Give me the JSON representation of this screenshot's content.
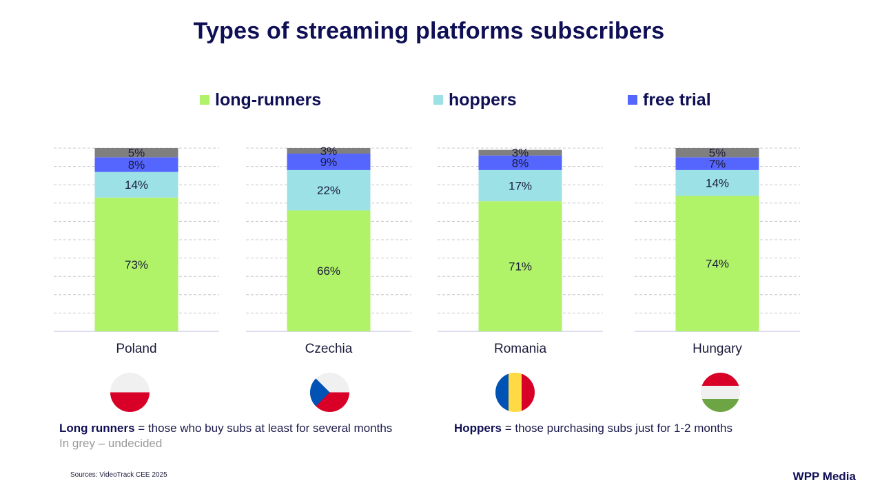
{
  "title": "Types of streaming platforms subscribers",
  "legend": [
    {
      "label": "long-runners",
      "color": "#b0f268"
    },
    {
      "label": "hoppers",
      "color": "#9be1e6"
    },
    {
      "label": "free trial",
      "color": "#5566ff"
    }
  ],
  "chart_data": {
    "type": "bar",
    "stacked": true,
    "categories": [
      "Poland",
      "Czechia",
      "Romania",
      "Hungary"
    ],
    "series": [
      {
        "name": "long-runners",
        "color": "#b0f268",
        "values": [
          73,
          66,
          71,
          74
        ]
      },
      {
        "name": "hoppers",
        "color": "#9be1e6",
        "values": [
          14,
          22,
          17,
          14
        ]
      },
      {
        "name": "free trial",
        "color": "#5566ff",
        "values": [
          8,
          9,
          8,
          7
        ]
      },
      {
        "color": "#7f7f7f",
        "values": [
          5,
          3,
          3,
          5
        ]
      }
    ],
    "value_suffix": "%",
    "ylim": [
      0,
      100
    ],
    "grid": true
  },
  "notes": {
    "long_runners_term": "Long runners",
    "long_runners_def": " = those who buy subs at least for several months",
    "hoppers_term": "Hoppers",
    "hoppers_def": " = those purchasing subs just for 1-2 months",
    "grey": "In grey – undecided"
  },
  "sources": "Sources: VideoTrack CEE 2025",
  "brand": "WPP Media"
}
